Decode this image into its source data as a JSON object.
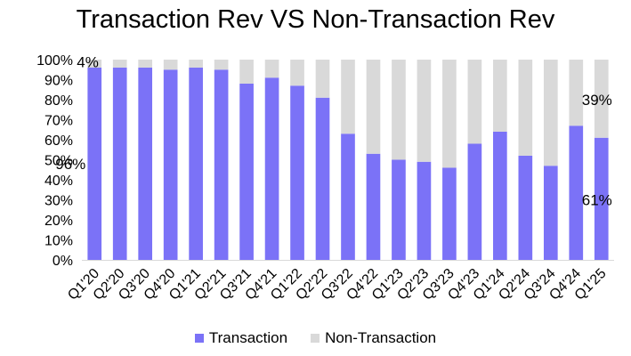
{
  "chart_data": {
    "type": "bar",
    "stacked": true,
    "title": "Transaction Rev VS Non-Transaction Rev",
    "xlabel": "",
    "ylabel": "",
    "ylim": [
      0,
      100
    ],
    "y_ticks": [
      "0%",
      "10%",
      "20%",
      "30%",
      "40%",
      "50%",
      "60%",
      "70%",
      "80%",
      "90%",
      "100%"
    ],
    "categories": [
      "Q1'20",
      "Q2'20",
      "Q3'20",
      "Q4'20",
      "Q1'21",
      "Q2'21",
      "Q3'21",
      "Q4'21",
      "Q1'22",
      "Q2'22",
      "Q3'22",
      "Q4'22",
      "Q1'23",
      "Q2'23",
      "Q3'23",
      "Q4'23",
      "Q1'24",
      "Q2'24",
      "Q3'24",
      "Q4'24",
      "Q1'25"
    ],
    "series": [
      {
        "name": "Transaction",
        "color": "#7b72f7",
        "values": [
          96,
          96,
          96,
          95,
          96,
          95,
          88,
          91,
          87,
          81,
          63,
          53,
          50,
          49,
          46,
          58,
          64,
          52,
          47,
          67,
          61
        ]
      },
      {
        "name": "Non-Transaction",
        "color": "#d9d9d9",
        "values": [
          4,
          4,
          4,
          5,
          4,
          5,
          12,
          9,
          13,
          19,
          37,
          47,
          50,
          51,
          54,
          42,
          36,
          48,
          53,
          33,
          39
        ]
      }
    ],
    "data_labels": [
      {
        "text": "4%",
        "category": "Q1'20",
        "series": "Non-Transaction"
      },
      {
        "text": "96%",
        "category": "Q1'20",
        "series": "Transaction"
      },
      {
        "text": "39%",
        "category": "Q1'25",
        "series": "Non-Transaction"
      },
      {
        "text": "61%",
        "category": "Q1'25",
        "series": "Transaction"
      }
    ],
    "grid": false,
    "legend": "bottom"
  }
}
